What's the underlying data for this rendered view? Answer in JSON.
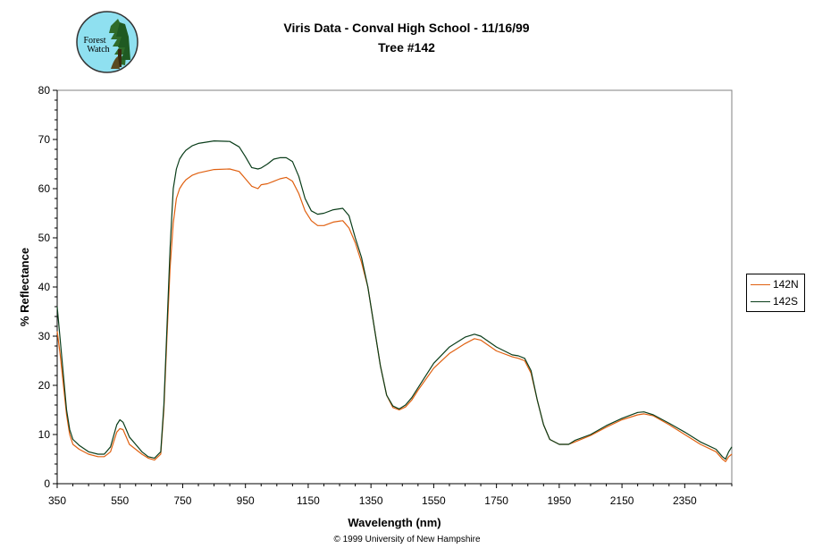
{
  "logo": {
    "text_line1": "Forest",
    "text_line2": "Watch"
  },
  "footer": "© 1999 University of New Hampshire",
  "chart_data": {
    "type": "line",
    "title": "Viris Data - Conval High School - 11/16/99",
    "subtitle": "Tree #142",
    "xlabel": "Wavelength (nm)",
    "ylabel": "% Reflectance",
    "xlim": [
      350,
      2500
    ],
    "ylim": [
      0,
      80
    ],
    "xticks": [
      350,
      550,
      750,
      950,
      1150,
      1350,
      1550,
      1750,
      1950,
      2150,
      2350
    ],
    "yticks": [
      0,
      10,
      20,
      30,
      40,
      50,
      60,
      70,
      80
    ],
    "grid": false,
    "legend_position": "right",
    "series": [
      {
        "name": "142N",
        "color": "#e06010",
        "x": [
          350,
          360,
          370,
          380,
          390,
          400,
          420,
          450,
          480,
          500,
          520,
          540,
          550,
          560,
          570,
          580,
          600,
          620,
          640,
          660,
          680,
          690,
          700,
          710,
          720,
          730,
          740,
          750,
          760,
          780,
          800,
          850,
          900,
          930,
          950,
          970,
          990,
          1000,
          1020,
          1040,
          1060,
          1080,
          1100,
          1120,
          1140,
          1160,
          1180,
          1200,
          1230,
          1260,
          1280,
          1300,
          1320,
          1340,
          1360,
          1380,
          1400,
          1420,
          1440,
          1460,
          1480,
          1500,
          1550,
          1600,
          1650,
          1680,
          1700,
          1750,
          1800,
          1820,
          1840,
          1860,
          1880,
          1900,
          1920,
          1950,
          1980,
          2000,
          2050,
          2100,
          2150,
          2200,
          2220,
          2250,
          2300,
          2350,
          2400,
          2450,
          2470,
          2480,
          2490,
          2500
        ],
        "y": [
          31,
          26,
          20,
          14,
          10,
          8,
          7,
          6,
          5.5,
          5.5,
          6.5,
          10.5,
          11.2,
          11,
          9.5,
          8,
          7,
          6,
          5.2,
          4.8,
          6,
          15,
          30,
          44,
          53,
          58,
          60,
          61,
          61.8,
          62.7,
          63.2,
          63.9,
          64,
          63.5,
          62,
          60.5,
          60,
          60.8,
          61,
          61.5,
          62,
          62.3,
          61.5,
          59,
          55.5,
          53.5,
          52.5,
          52.5,
          53.2,
          53.5,
          52,
          49,
          45,
          40,
          32,
          24,
          18,
          15.5,
          15,
          15.6,
          17,
          19,
          23.5,
          26.5,
          28.5,
          29.5,
          29.2,
          27,
          25.8,
          25.5,
          25,
          22.5,
          17,
          12,
          9,
          8,
          8,
          8.5,
          9.8,
          11.5,
          13,
          14,
          14.2,
          13.8,
          12,
          10,
          8,
          6.5,
          5,
          4.5,
          5.5,
          6
        ]
      },
      {
        "name": "142S",
        "color": "#0a3d1a",
        "x": [
          350,
          360,
          370,
          380,
          390,
          400,
          420,
          450,
          480,
          500,
          520,
          540,
          550,
          560,
          570,
          580,
          600,
          620,
          640,
          660,
          680,
          690,
          700,
          710,
          720,
          730,
          740,
          750,
          760,
          780,
          800,
          850,
          900,
          930,
          950,
          970,
          990,
          1000,
          1020,
          1040,
          1060,
          1080,
          1100,
          1120,
          1140,
          1160,
          1180,
          1200,
          1230,
          1260,
          1280,
          1300,
          1320,
          1340,
          1360,
          1380,
          1400,
          1420,
          1440,
          1460,
          1480,
          1500,
          1550,
          1600,
          1650,
          1680,
          1700,
          1750,
          1800,
          1820,
          1840,
          1860,
          1880,
          1900,
          1920,
          1950,
          1980,
          2000,
          2050,
          2100,
          2150,
          2200,
          2220,
          2250,
          2300,
          2350,
          2400,
          2450,
          2470,
          2480,
          2490,
          2500
        ],
        "y": [
          36,
          29,
          22,
          15,
          11,
          9,
          7.8,
          6.5,
          6,
          6,
          7.5,
          12,
          13,
          12.5,
          11,
          9.5,
          8,
          6.5,
          5.5,
          5.2,
          6.5,
          16,
          32,
          48,
          60,
          64,
          66,
          67,
          67.8,
          68.7,
          69.2,
          69.7,
          69.6,
          68.5,
          66.5,
          64.3,
          64,
          64.2,
          65,
          66,
          66.3,
          66.3,
          65.5,
          62.5,
          58,
          55.5,
          54.8,
          55,
          55.7,
          56,
          54.5,
          50,
          46,
          40,
          32,
          24,
          18,
          15.8,
          15.2,
          16,
          17.5,
          19.5,
          24.5,
          27.8,
          29.8,
          30.4,
          30,
          27.8,
          26.2,
          26,
          25.5,
          23,
          17,
          12,
          9,
          8,
          8,
          8.8,
          10,
          11.8,
          13.3,
          14.5,
          14.6,
          14,
          12.3,
          10.5,
          8.5,
          7,
          5.5,
          5,
          6.5,
          7.5
        ]
      }
    ]
  }
}
